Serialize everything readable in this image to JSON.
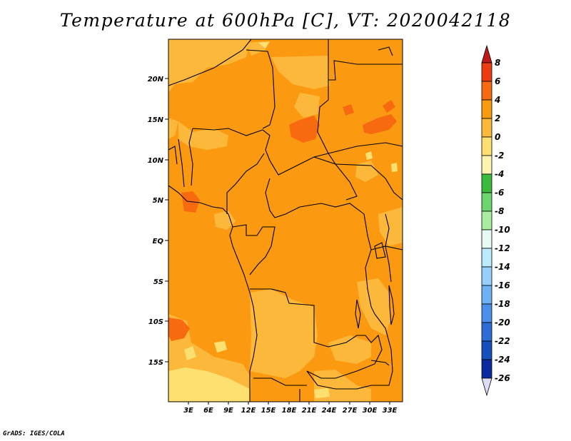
{
  "title": "Temperature at 600hPa [C], VT: 2020042118",
  "credit": "GrADS: IGES/COLA",
  "map": {
    "lat_ticks": [
      "20N",
      "15N",
      "10N",
      "5N",
      "EQ",
      "5S",
      "10S",
      "15S"
    ],
    "lon_ticks": [
      "3E",
      "6E",
      "9E",
      "12E",
      "15E",
      "18E",
      "21E",
      "24E",
      "27E",
      "30E",
      "33E"
    ]
  },
  "colorbar": {
    "labels": [
      "8",
      "6",
      "4",
      "2",
      "0",
      "-2",
      "-4",
      "-6",
      "-8",
      "-10",
      "-12",
      "-14",
      "-16",
      "-18",
      "-20",
      "-22",
      "-24",
      "-26"
    ],
    "colors": [
      "#c01818",
      "#ee3c10",
      "#f86a10",
      "#fb9a10",
      "#fcb83a",
      "#fde070",
      "#fef6b0",
      "#3cba3c",
      "#6cd66c",
      "#a8eea0",
      "#e4faf2",
      "#bceafe",
      "#96d0fe",
      "#6eb2f6",
      "#4a90ea",
      "#2c6ed6",
      "#1450be",
      "#0c2aa0",
      "#08146c",
      "#dcdcf4"
    ]
  },
  "legend_colors": {
    "2_to_4": "#fb9a10",
    "0_to_2": "#fcb83a",
    "4_to_6": "#f86a10",
    "minus2_to_0": "#fde070",
    "minus4_to_minus2": "#fef6b0"
  }
}
